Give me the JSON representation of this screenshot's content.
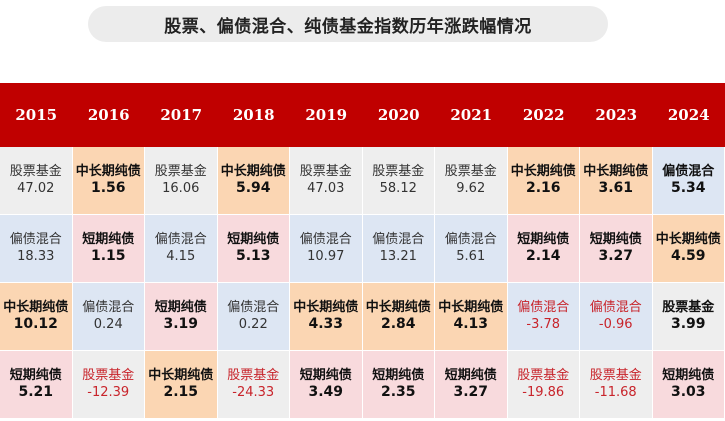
{
  "title": "股票、偏债混合、纯债基金指数历年涨跌幅情况",
  "colors": {
    "股票基金": "#eeeeee",
    "偏债混合": "#dde6f3",
    "中长期纯债": "#fbd6b3",
    "短期纯债": "#f8dadd",
    "header": "#c00000",
    "negative_text": "#c8242b"
  },
  "chart_data": {
    "type": "table",
    "title": "股票、偏债混合、纯债基金指数历年涨跌幅情况",
    "years": [
      "2015",
      "2016",
      "2017",
      "2018",
      "2019",
      "2020",
      "2021",
      "2022",
      "2023",
      "2024"
    ],
    "columns": [
      [
        {
          "name": "股票基金",
          "value": "47.02",
          "style": "plain"
        },
        {
          "name": "偏债混合",
          "value": "18.33",
          "style": "plain"
        },
        {
          "name": "中长期纯债",
          "value": "10.12",
          "style": "bold"
        },
        {
          "name": "短期纯债",
          "value": "5.21",
          "style": "bold"
        }
      ],
      [
        {
          "name": "中长期纯债",
          "value": "1.56",
          "style": "bold"
        },
        {
          "name": "短期纯债",
          "value": "1.15",
          "style": "bold"
        },
        {
          "name": "偏债混合",
          "value": "0.24",
          "style": "plain"
        },
        {
          "name": "股票基金",
          "value": "-12.39",
          "style": "neg"
        }
      ],
      [
        {
          "name": "股票基金",
          "value": "16.06",
          "style": "plain"
        },
        {
          "name": "偏债混合",
          "value": "4.15",
          "style": "plain"
        },
        {
          "name": "短期纯债",
          "value": "3.19",
          "style": "bold"
        },
        {
          "name": "中长期纯债",
          "value": "2.15",
          "style": "bold"
        }
      ],
      [
        {
          "name": "中长期纯债",
          "value": "5.94",
          "style": "bold"
        },
        {
          "name": "短期纯债",
          "value": "5.13",
          "style": "bold"
        },
        {
          "name": "偏债混合",
          "value": "0.22",
          "style": "plain"
        },
        {
          "name": "股票基金",
          "value": "-24.33",
          "style": "neg"
        }
      ],
      [
        {
          "name": "股票基金",
          "value": "47.03",
          "style": "plain"
        },
        {
          "name": "偏债混合",
          "value": "10.97",
          "style": "plain"
        },
        {
          "name": "中长期纯债",
          "value": "4.33",
          "style": "bold"
        },
        {
          "name": "短期纯债",
          "value": "3.49",
          "style": "bold"
        }
      ],
      [
        {
          "name": "股票基金",
          "value": "58.12",
          "style": "plain"
        },
        {
          "name": "偏债混合",
          "value": "13.21",
          "style": "plain"
        },
        {
          "name": "中长期纯债",
          "value": "2.84",
          "style": "bold"
        },
        {
          "name": "短期纯债",
          "value": "2.35",
          "style": "bold"
        }
      ],
      [
        {
          "name": "股票基金",
          "value": "9.62",
          "style": "plain"
        },
        {
          "name": "偏债混合",
          "value": "5.61",
          "style": "plain"
        },
        {
          "name": "中长期纯债",
          "value": "4.13",
          "style": "bold"
        },
        {
          "name": "短期纯债",
          "value": "3.27",
          "style": "bold"
        }
      ],
      [
        {
          "name": "中长期纯债",
          "value": "2.16",
          "style": "bold"
        },
        {
          "name": "短期纯债",
          "value": "2.14",
          "style": "bold"
        },
        {
          "name": "偏债混合",
          "value": "-3.78",
          "style": "neg"
        },
        {
          "name": "股票基金",
          "value": "-19.86",
          "style": "neg"
        }
      ],
      [
        {
          "name": "中长期纯债",
          "value": "3.61",
          "style": "bold"
        },
        {
          "name": "短期纯债",
          "value": "3.27",
          "style": "bold"
        },
        {
          "name": "偏债混合",
          "value": "-0.96",
          "style": "neg"
        },
        {
          "name": "股票基金",
          "value": "-11.68",
          "style": "neg"
        }
      ],
      [
        {
          "name": "偏债混合",
          "value": "5.34",
          "style": "bold"
        },
        {
          "name": "中长期纯债",
          "value": "4.59",
          "style": "bold"
        },
        {
          "name": "股票基金",
          "value": "3.99",
          "style": "bold"
        },
        {
          "name": "短期纯债",
          "value": "3.03",
          "style": "bold"
        }
      ]
    ]
  }
}
